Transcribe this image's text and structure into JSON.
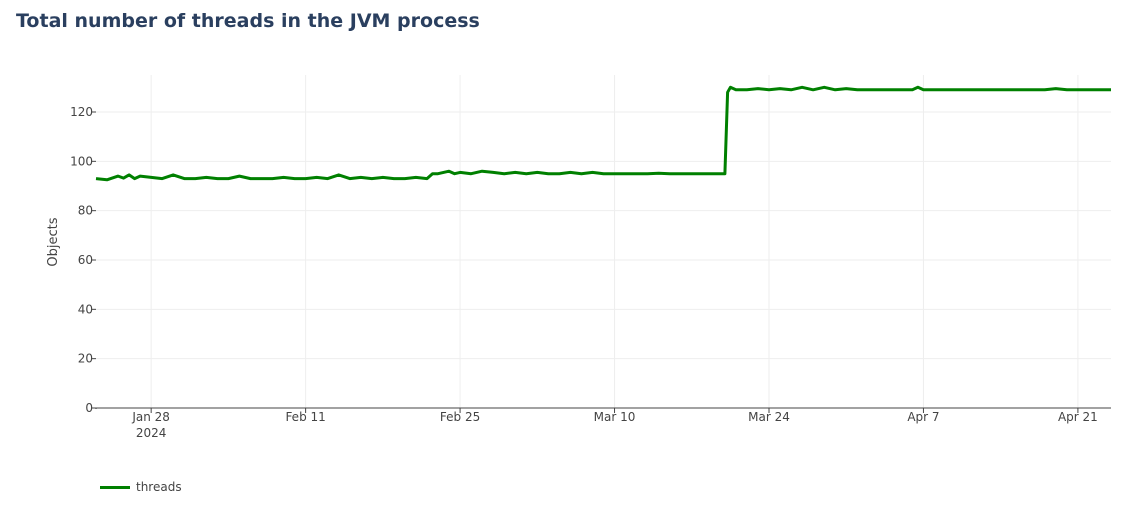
{
  "chart_data": {
    "type": "line",
    "title": "Total number of threads in the JVM process",
    "xlabel": "",
    "ylabel": "Objects",
    "xlim": [
      "2024-01-23",
      "2024-04-24"
    ],
    "ylim": [
      0,
      135
    ],
    "grid": true,
    "legend_position": "bottom-left",
    "x_ticks": [
      {
        "date": "2024-01-28",
        "label": "Jan 28",
        "sublabel": "2024"
      },
      {
        "date": "2024-02-11",
        "label": "Feb 11",
        "sublabel": ""
      },
      {
        "date": "2024-02-25",
        "label": "Feb 25",
        "sublabel": ""
      },
      {
        "date": "2024-03-10",
        "label": "Mar 10",
        "sublabel": ""
      },
      {
        "date": "2024-03-24",
        "label": "Mar 24",
        "sublabel": ""
      },
      {
        "date": "2024-04-07",
        "label": "Apr 7",
        "sublabel": ""
      },
      {
        "date": "2024-04-21",
        "label": "Apr 21",
        "sublabel": ""
      }
    ],
    "y_ticks": [
      0,
      20,
      40,
      60,
      80,
      100,
      120
    ],
    "series": [
      {
        "name": "threads",
        "color": "#008000",
        "points": [
          [
            "2024-01-23",
            93
          ],
          [
            "2024-01-24",
            92.5
          ],
          [
            "2024-01-25",
            94
          ],
          [
            "2024-01-25T12:00",
            93.2
          ],
          [
            "2024-01-26",
            94.5
          ],
          [
            "2024-01-26T12:00",
            93
          ],
          [
            "2024-01-27",
            94
          ],
          [
            "2024-01-28",
            93.5
          ],
          [
            "2024-01-29",
            93
          ],
          [
            "2024-01-30",
            94.5
          ],
          [
            "2024-01-31",
            93
          ],
          [
            "2024-02-01",
            93
          ],
          [
            "2024-02-02",
            93.5
          ],
          [
            "2024-02-03",
            93
          ],
          [
            "2024-02-04",
            93
          ],
          [
            "2024-02-05",
            94
          ],
          [
            "2024-02-06",
            93
          ],
          [
            "2024-02-07",
            93
          ],
          [
            "2024-02-08",
            93
          ],
          [
            "2024-02-09",
            93.5
          ],
          [
            "2024-02-10",
            93
          ],
          [
            "2024-02-11",
            93
          ],
          [
            "2024-02-12",
            93.5
          ],
          [
            "2024-02-13",
            93
          ],
          [
            "2024-02-14",
            94.5
          ],
          [
            "2024-02-15",
            93
          ],
          [
            "2024-02-16",
            93.5
          ],
          [
            "2024-02-17",
            93
          ],
          [
            "2024-02-18",
            93.5
          ],
          [
            "2024-02-19",
            93
          ],
          [
            "2024-02-20",
            93
          ],
          [
            "2024-02-21",
            93.5
          ],
          [
            "2024-02-22",
            93
          ],
          [
            "2024-02-22T12:00",
            95
          ],
          [
            "2024-02-23",
            95
          ],
          [
            "2024-02-24",
            96
          ],
          [
            "2024-02-24T12:00",
            95
          ],
          [
            "2024-02-25",
            95.5
          ],
          [
            "2024-02-26",
            95
          ],
          [
            "2024-02-27",
            96
          ],
          [
            "2024-02-28",
            95.5
          ],
          [
            "2024-02-29",
            95
          ],
          [
            "2024-03-01",
            95.5
          ],
          [
            "2024-03-02",
            95
          ],
          [
            "2024-03-03",
            95.5
          ],
          [
            "2024-03-04",
            95
          ],
          [
            "2024-03-05",
            95
          ],
          [
            "2024-03-06",
            95.5
          ],
          [
            "2024-03-07",
            95
          ],
          [
            "2024-03-08",
            95.5
          ],
          [
            "2024-03-09",
            95
          ],
          [
            "2024-03-10",
            95
          ],
          [
            "2024-03-11",
            95
          ],
          [
            "2024-03-12",
            95
          ],
          [
            "2024-03-13",
            95
          ],
          [
            "2024-03-14",
            95.2
          ],
          [
            "2024-03-15",
            95
          ],
          [
            "2024-03-16",
            95
          ],
          [
            "2024-03-17",
            95
          ],
          [
            "2024-03-18",
            95
          ],
          [
            "2024-03-19",
            95
          ],
          [
            "2024-03-20",
            95
          ],
          [
            "2024-03-20T06:00",
            128
          ],
          [
            "2024-03-20T12:00",
            130
          ],
          [
            "2024-03-21",
            129
          ],
          [
            "2024-03-22",
            129
          ],
          [
            "2024-03-23",
            129.5
          ],
          [
            "2024-03-24",
            129
          ],
          [
            "2024-03-25",
            129.5
          ],
          [
            "2024-03-26",
            129
          ],
          [
            "2024-03-27",
            130
          ],
          [
            "2024-03-28",
            129
          ],
          [
            "2024-03-29",
            130
          ],
          [
            "2024-03-30",
            129
          ],
          [
            "2024-03-31",
            129.5
          ],
          [
            "2024-04-01",
            129
          ],
          [
            "2024-04-02",
            129
          ],
          [
            "2024-04-03",
            129
          ],
          [
            "2024-04-04",
            129
          ],
          [
            "2024-04-05",
            129
          ],
          [
            "2024-04-06",
            129
          ],
          [
            "2024-04-06T12:00",
            130
          ],
          [
            "2024-04-07",
            129
          ],
          [
            "2024-04-08",
            129
          ],
          [
            "2024-04-09",
            129
          ],
          [
            "2024-04-10",
            129
          ],
          [
            "2024-04-11",
            129
          ],
          [
            "2024-04-12",
            129
          ],
          [
            "2024-04-13",
            129
          ],
          [
            "2024-04-14",
            129
          ],
          [
            "2024-04-15",
            129
          ],
          [
            "2024-04-16",
            129
          ],
          [
            "2024-04-17",
            129
          ],
          [
            "2024-04-18",
            129
          ],
          [
            "2024-04-19",
            129.5
          ],
          [
            "2024-04-20",
            129
          ],
          [
            "2024-04-21",
            129
          ],
          [
            "2024-04-22",
            129
          ],
          [
            "2024-04-23",
            129
          ],
          [
            "2024-04-24",
            129
          ]
        ]
      }
    ]
  }
}
